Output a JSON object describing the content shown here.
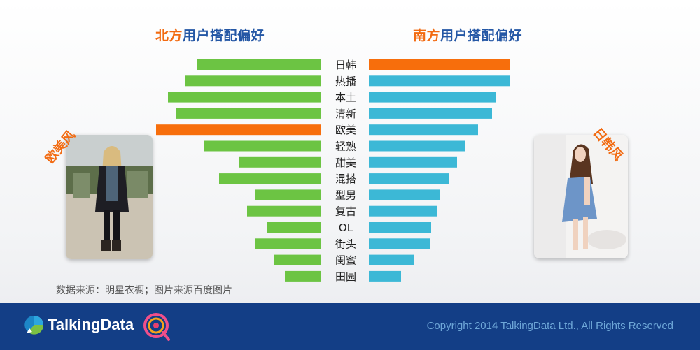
{
  "chart_data": {
    "type": "bar",
    "layout": "butterfly",
    "categories": [
      "日韩",
      "热播",
      "本土",
      "清新",
      "欧美",
      "轻熟",
      "甜美",
      "混搭",
      "型男",
      "复古",
      "OL",
      "街头",
      "闺蜜",
      "田园"
    ],
    "series": [
      {
        "name": "北方用户搭配偏好",
        "values": [
          178,
          194,
          219,
          207,
          236,
          168,
          118,
          146,
          94,
          106,
          78,
          94,
          68,
          52
        ]
      },
      {
        "name": "南方用户搭配偏好",
        "values": [
          202,
          201,
          182,
          176,
          156,
          137,
          126,
          114,
          102,
          97,
          89,
          88,
          64,
          46
        ]
      }
    ],
    "highlight": {
      "north": "欧美",
      "south": "日韩"
    },
    "title_left": {
      "accent": "北方",
      "rest": "用户搭配偏好"
    },
    "title_right": {
      "accent": "南方",
      "rest": "用户搭配偏好"
    },
    "colors": {
      "north": "#6cc443",
      "south": "#3cb8d6",
      "highlight": "#f76e0c",
      "accent": "#f26b12",
      "title": "#2457a5"
    }
  },
  "labels": {
    "left_style": "欧美风",
    "right_style": "日韩风",
    "source_note": "数据来源：明星衣橱；图片来源百度图片"
  },
  "footer": {
    "logo_text": "TalkingData",
    "copyright": "Copyright 2014 TalkingData Ltd., All Rights Reserved"
  }
}
